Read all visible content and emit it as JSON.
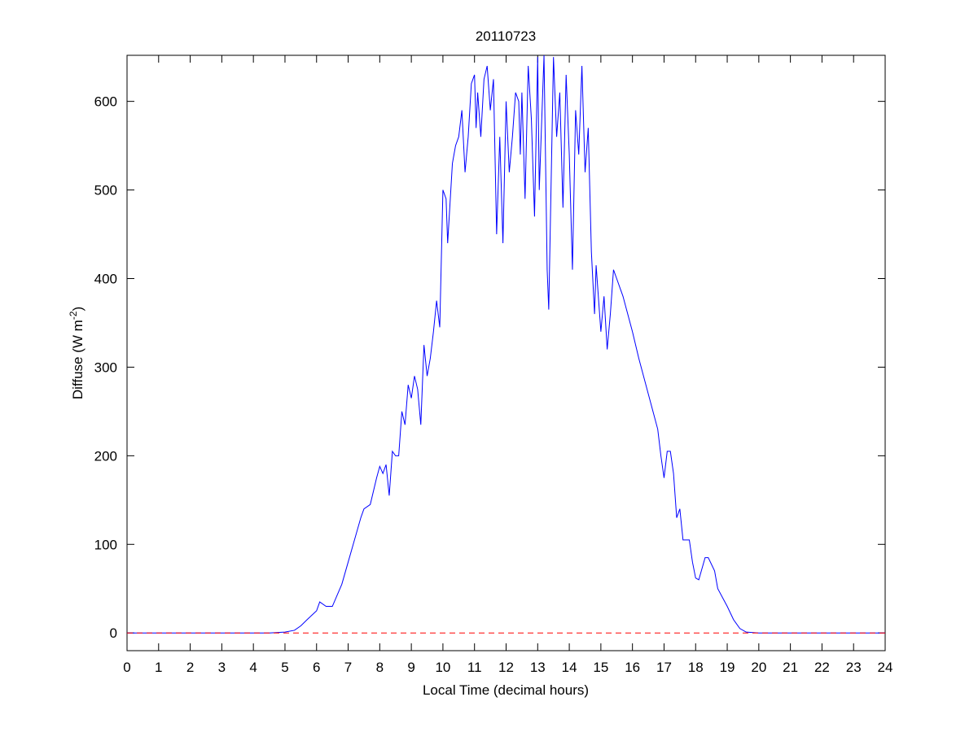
{
  "chart_data": {
    "type": "line",
    "title": "20110723",
    "xlabel": "Local Time (decimal hours)",
    "ylabel": [
      "Diffuse (W m",
      "-2",
      ")"
    ],
    "xlim": [
      0,
      24
    ],
    "xticks": [
      0,
      1,
      2,
      3,
      4,
      5,
      6,
      7,
      8,
      9,
      10,
      11,
      12,
      13,
      14,
      15,
      16,
      17,
      18,
      19,
      20,
      21,
      22,
      23,
      24
    ],
    "ylim": [
      -20,
      652
    ],
    "yticks": [
      0,
      100,
      200,
      300,
      400,
      500,
      600
    ],
    "grid": false,
    "series": [
      {
        "color": "#0000ff",
        "dash": false,
        "x": [
          0,
          4.5,
          5,
          5.3,
          5.5,
          5.7,
          6,
          6.1,
          6.3,
          6.5,
          6.8,
          7,
          7.2,
          7.4,
          7.5,
          7.7,
          7.9,
          8,
          8.1,
          8.2,
          8.3,
          8.4,
          8.5,
          8.6,
          8.7,
          8.8,
          8.9,
          9,
          9.1,
          9.2,
          9.3,
          9.4,
          9.5,
          9.6,
          9.7,
          9.8,
          9.9,
          10,
          10.1,
          10.15,
          10.3,
          10.4,
          10.5,
          10.6,
          10.7,
          10.8,
          10.9,
          11,
          11.05,
          11.1,
          11.2,
          11.3,
          11.4,
          11.5,
          11.6,
          11.7,
          11.8,
          11.9,
          12,
          12.1,
          12.2,
          12.3,
          12.4,
          12.45,
          12.5,
          12.6,
          12.7,
          12.8,
          12.9,
          13,
          13.05,
          13.2,
          13.3,
          13.35,
          13.5,
          13.6,
          13.7,
          13.8,
          13.9,
          14,
          14.1,
          14.2,
          14.3,
          14.4,
          14.5,
          14.6,
          14.7,
          14.8,
          14.85,
          15,
          15.1,
          15.2,
          15.3,
          15.4,
          15.5,
          15.7,
          16,
          16.2,
          16.5,
          16.8,
          16.9,
          17,
          17.1,
          17.2,
          17.3,
          17.4,
          17.5,
          17.6,
          17.8,
          17.9,
          18,
          18.1,
          18.3,
          18.4,
          18.6,
          18.7,
          19,
          19.2,
          19.4,
          19.6,
          20,
          24
        ],
        "values": [
          0,
          0,
          1,
          3,
          8,
          15,
          25,
          35,
          30,
          30,
          55,
          80,
          105,
          130,
          140,
          145,
          175,
          188,
          180,
          190,
          155,
          205,
          200,
          200,
          250,
          235,
          280,
          265,
          290,
          275,
          235,
          325,
          290,
          310,
          340,
          375,
          345,
          500,
          490,
          440,
          530,
          550,
          560,
          590,
          520,
          560,
          620,
          630,
          570,
          610,
          560,
          625,
          640,
          590,
          625,
          450,
          560,
          440,
          600,
          520,
          560,
          610,
          600,
          540,
          610,
          490,
          640,
          580,
          470,
          650,
          500,
          652,
          410,
          365,
          650,
          560,
          610,
          480,
          630,
          540,
          410,
          590,
          540,
          640,
          520,
          570,
          430,
          360,
          415,
          340,
          380,
          320,
          360,
          410,
          400,
          380,
          340,
          310,
          270,
          230,
          200,
          175,
          205,
          205,
          180,
          130,
          140,
          105,
          105,
          80,
          62,
          60,
          85,
          85,
          70,
          50,
          30,
          15,
          5,
          1,
          0,
          0
        ]
      },
      {
        "color": "#ff0000",
        "dash": true,
        "x": [
          0,
          24
        ],
        "values": [
          0,
          0
        ]
      }
    ]
  }
}
